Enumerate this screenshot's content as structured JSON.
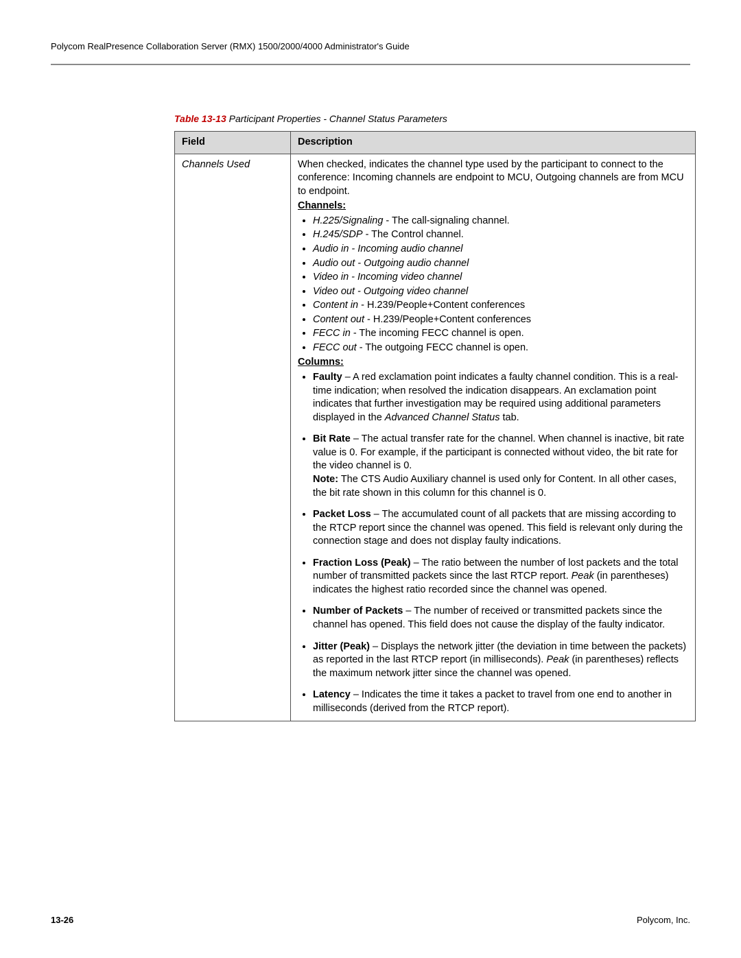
{
  "header": {
    "text": "Polycom RealPresence Collaboration Server (RMX) 1500/2000/4000 Administrator's Guide"
  },
  "caption": {
    "label": "Table 13-13",
    "text": " Participant Properties - Channel Status Parameters"
  },
  "table": {
    "header_field": "Field",
    "header_description": "Description",
    "field_name": "Channels Used",
    "intro": "When checked, indicates the channel type used by the participant to connect to the conference: Incoming channels are endpoint to MCU, Outgoing channels are from MCU to endpoint.",
    "channels_label": "Channels:",
    "channels": [
      {
        "italic": "H.225/Signaling",
        "rest": " - The call-signaling channel."
      },
      {
        "italic": "H.245/SDP",
        "rest": " - The Control channel."
      },
      {
        "italic": "Audio in - Incoming audio channel",
        "rest": ""
      },
      {
        "italic": "Audio out - Outgoing audio channel",
        "rest": ""
      },
      {
        "italic": "Video in - Incoming video channel",
        "rest": ""
      },
      {
        "italic": "Video out - Outgoing video channel",
        "rest": ""
      },
      {
        "italic": "Content in",
        "rest": " - H.239/People+Content conferences"
      },
      {
        "italic": "Content out",
        "rest": " - H.239/People+Content conferences"
      },
      {
        "italic": "FECC in",
        "rest": " - The incoming FECC channel is open."
      },
      {
        "italic": "FECC out",
        "rest": " - The outgoing FECC channel is open."
      }
    ],
    "columns_label": "Columns:",
    "columns": {
      "faulty": {
        "title": "Faulty",
        "body_1": " – A red exclamation point indicates a faulty channel condition. This is a real-time indication; when resolved the indication disappears. An exclamation point indicates that further investigation may be required using additional parameters displayed in the ",
        "italic_tail": "Advanced Channel Status",
        "body_2": " tab."
      },
      "bitrate": {
        "title": "Bit Rate",
        "body_1": " – The actual transfer rate for the channel. When channel is inactive, bit rate value is 0. For example, if the participant is connected without video, the bit rate for the video channel is 0.",
        "note_label": "Note:",
        "note_body": " The CTS Audio Auxiliary channel is used only for Content. In all other cases, the bit rate shown in this column for this channel is 0."
      },
      "packetloss": {
        "title": "Packet Loss",
        "body": " – The accumulated count of all packets that are missing according to the RTCP report since the channel was opened. This field is relevant only during the connection stage and does not display faulty indications."
      },
      "fractionloss": {
        "title": "Fraction Loss (Peak)",
        "body_1": " – The ratio between the number of lost packets and the total number of transmitted packets since the last RTCP report. ",
        "italic_mid": "Peak",
        "body_2": " (in parentheses) indicates the highest ratio recorded since the channel was opened."
      },
      "numpackets": {
        "title": "Number of Packets",
        "body": " – The number of received or transmitted packets since the channel has opened. This field does not cause the display of the faulty indicator."
      },
      "jitter": {
        "title": "Jitter (Peak)",
        "body_1": " – Displays the network jitter (the deviation in time between the packets) as reported in the last RTCP report (in milliseconds). ",
        "italic_mid": "Peak",
        "body_2": " (in parentheses) reflects the maximum network jitter since the channel was opened."
      },
      "latency": {
        "title": "Latency",
        "body": " – Indicates the time it takes a packet to travel from one end to another in milliseconds (derived from the RTCP report)."
      }
    }
  },
  "footer": {
    "page": "13-26",
    "company": "Polycom, Inc."
  }
}
